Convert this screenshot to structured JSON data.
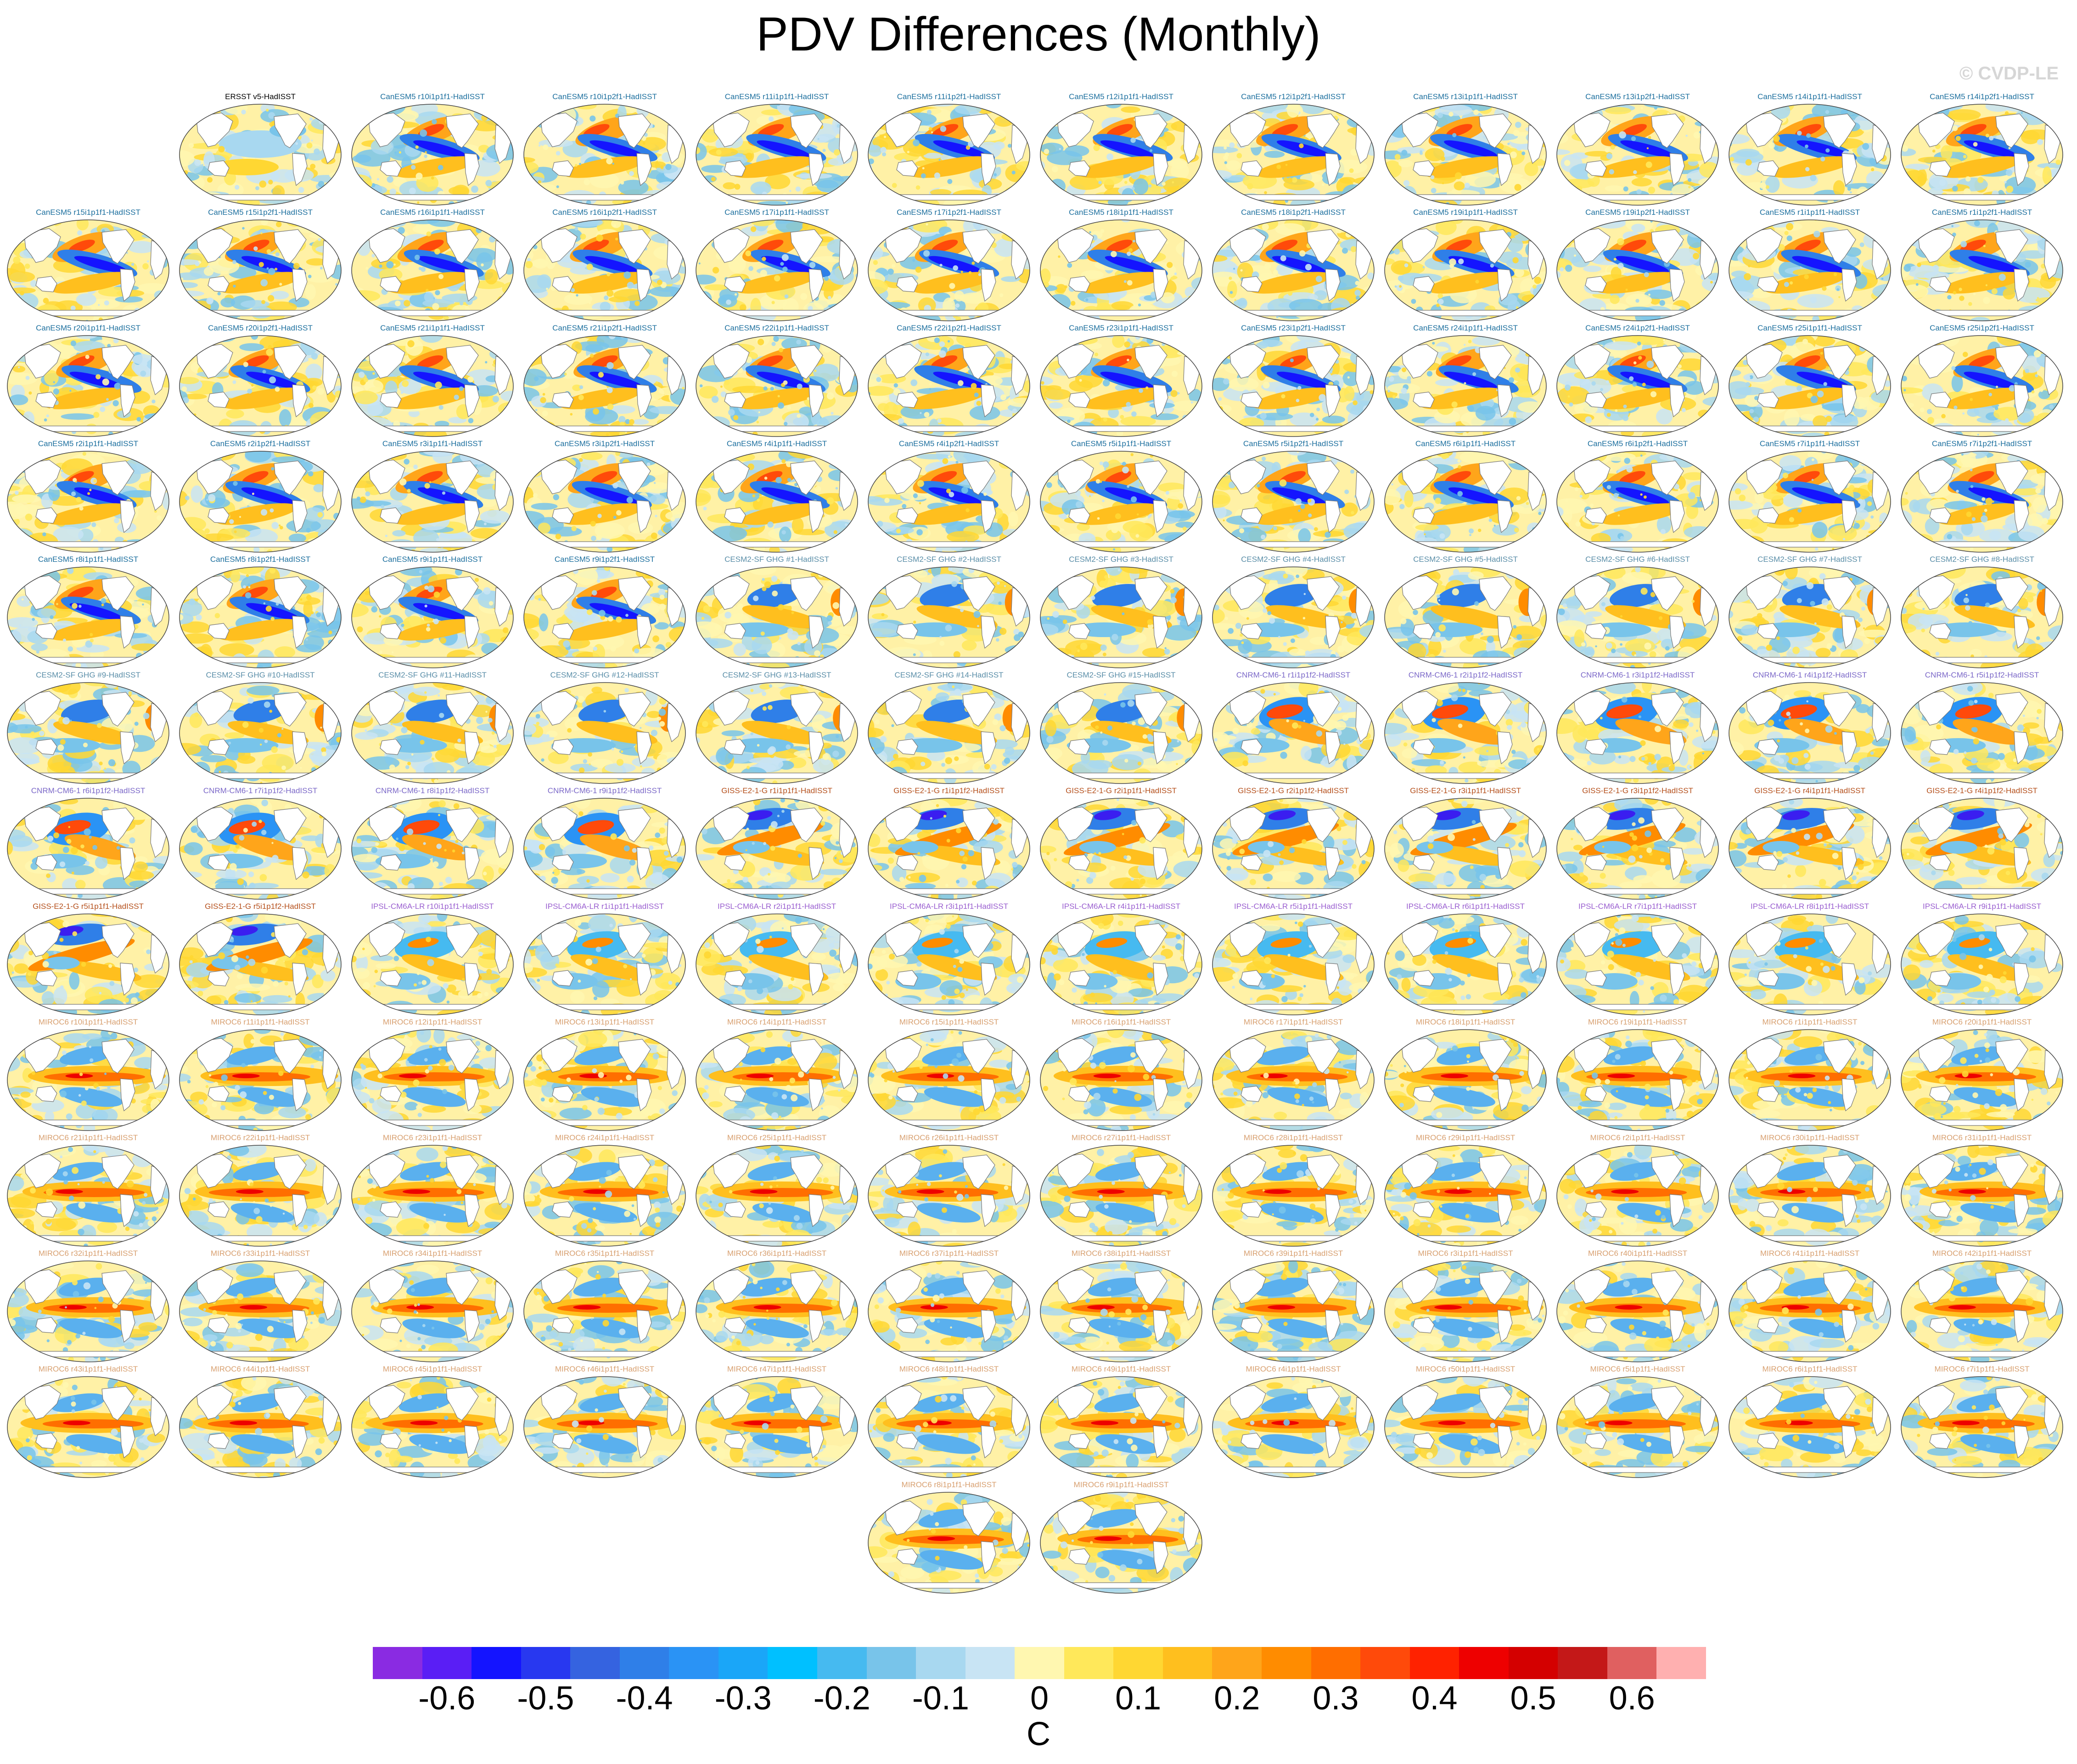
{
  "title": "PDV Differences (Monthly)",
  "watermark": "© CVDP-LE",
  "units": "C",
  "colorbar": {
    "colors": [
      "#8a2be2",
      "#5a1ef5",
      "#1414ff",
      "#2838f0",
      "#3563e0",
      "#2f7fe8",
      "#2a93f5",
      "#1aa6f8",
      "#00c0ff",
      "#46baf0",
      "#78c4ea",
      "#a8d8f0",
      "#c8e4f4",
      "#fff7b0",
      "#ffe85a",
      "#ffd732",
      "#ffbf1e",
      "#ffa51a",
      "#ff8c00",
      "#ff6e00",
      "#ff4a0a",
      "#ff2200",
      "#ee0000",
      "#d40000",
      "#c41818",
      "#e06060",
      "#ffb0b0"
    ],
    "tick_labels": [
      "-0.6",
      "-0.5",
      "-0.4",
      "-0.3",
      "-0.2",
      "-0.1",
      "0",
      "0.1",
      "0.2",
      "0.3",
      "0.4",
      "0.5",
      "0.6"
    ]
  },
  "panels": [
    {
      "label": "ERSST v5-HadISST",
      "color": "#000000",
      "pattern": "obs"
    },
    {
      "label": "CanESM5 r10i1p1f1-HadISST",
      "color": "#1c6f9e",
      "pattern": "can"
    },
    {
      "label": "CanESM5 r10i1p2f1-HadISST",
      "color": "#1c6f9e",
      "pattern": "can"
    },
    {
      "label": "CanESM5 r11i1p1f1-HadISST",
      "color": "#1c6f9e",
      "pattern": "can"
    },
    {
      "label": "CanESM5 r11i1p2f1-HadISST",
      "color": "#1c6f9e",
      "pattern": "can"
    },
    {
      "label": "CanESM5 r12i1p1f1-HadISST",
      "color": "#1c6f9e",
      "pattern": "can"
    },
    {
      "label": "CanESM5 r12i1p2f1-HadISST",
      "color": "#1c6f9e",
      "pattern": "can"
    },
    {
      "label": "CanESM5 r13i1p1f1-HadISST",
      "color": "#1c6f9e",
      "pattern": "can"
    },
    {
      "label": "CanESM5 r13i1p2f1-HadISST",
      "color": "#1c6f9e",
      "pattern": "can"
    },
    {
      "label": "CanESM5 r14i1p1f1-HadISST",
      "color": "#1c6f9e",
      "pattern": "can"
    },
    {
      "label": "CanESM5 r14i1p2f1-HadISST",
      "color": "#1c6f9e",
      "pattern": "can"
    },
    {
      "label": "CanESM5 r15i1p1f1-HadISST",
      "color": "#1c6f9e",
      "pattern": "can"
    },
    {
      "label": "CanESM5 r15i1p2f1-HadISST",
      "color": "#1c6f9e",
      "pattern": "can"
    },
    {
      "label": "CanESM5 r16i1p1f1-HadISST",
      "color": "#1c6f9e",
      "pattern": "can"
    },
    {
      "label": "CanESM5 r16i1p2f1-HadISST",
      "color": "#1c6f9e",
      "pattern": "can"
    },
    {
      "label": "CanESM5 r17i1p1f1-HadISST",
      "color": "#1c6f9e",
      "pattern": "can"
    },
    {
      "label": "CanESM5 r17i1p2f1-HadISST",
      "color": "#1c6f9e",
      "pattern": "can"
    },
    {
      "label": "CanESM5 r18i1p1f1-HadISST",
      "color": "#1c6f9e",
      "pattern": "can"
    },
    {
      "label": "CanESM5 r18i1p2f1-HadISST",
      "color": "#1c6f9e",
      "pattern": "can"
    },
    {
      "label": "CanESM5 r19i1p1f1-HadISST",
      "color": "#1c6f9e",
      "pattern": "can"
    },
    {
      "label": "CanESM5 r19i1p2f1-HadISST",
      "color": "#1c6f9e",
      "pattern": "can"
    },
    {
      "label": "CanESM5 r1i1p1f1-HadISST",
      "color": "#1c6f9e",
      "pattern": "can"
    },
    {
      "label": "CanESM5 r1i1p2f1-HadISST",
      "color": "#1c6f9e",
      "pattern": "can"
    },
    {
      "label": "CanESM5 r20i1p1f1-HadISST",
      "color": "#1c6f9e",
      "pattern": "can"
    },
    {
      "label": "CanESM5 r20i1p2f1-HadISST",
      "color": "#1c6f9e",
      "pattern": "can"
    },
    {
      "label": "CanESM5 r21i1p1f1-HadISST",
      "color": "#1c6f9e",
      "pattern": "can"
    },
    {
      "label": "CanESM5 r21i1p2f1-HadISST",
      "color": "#1c6f9e",
      "pattern": "can"
    },
    {
      "label": "CanESM5 r22i1p1f1-HadISST",
      "color": "#1c6f9e",
      "pattern": "can"
    },
    {
      "label": "CanESM5 r22i1p2f1-HadISST",
      "color": "#1c6f9e",
      "pattern": "can"
    },
    {
      "label": "CanESM5 r23i1p1f1-HadISST",
      "color": "#1c6f9e",
      "pattern": "can"
    },
    {
      "label": "CanESM5 r23i1p2f1-HadISST",
      "color": "#1c6f9e",
      "pattern": "can"
    },
    {
      "label": "CanESM5 r24i1p1f1-HadISST",
      "color": "#1c6f9e",
      "pattern": "can"
    },
    {
      "label": "CanESM5 r24i1p2f1-HadISST",
      "color": "#1c6f9e",
      "pattern": "can"
    },
    {
      "label": "CanESM5 r25i1p1f1-HadISST",
      "color": "#1c6f9e",
      "pattern": "can"
    },
    {
      "label": "CanESM5 r25i1p2f1-HadISST",
      "color": "#1c6f9e",
      "pattern": "can"
    },
    {
      "label": "CanESM5 r2i1p1f1-HadISST",
      "color": "#1c6f9e",
      "pattern": "can"
    },
    {
      "label": "CanESM5 r2i1p2f1-HadISST",
      "color": "#1c6f9e",
      "pattern": "can"
    },
    {
      "label": "CanESM5 r3i1p1f1-HadISST",
      "color": "#1c6f9e",
      "pattern": "can"
    },
    {
      "label": "CanESM5 r3i1p2f1-HadISST",
      "color": "#1c6f9e",
      "pattern": "can"
    },
    {
      "label": "CanESM5 r4i1p1f1-HadISST",
      "color": "#1c6f9e",
      "pattern": "can"
    },
    {
      "label": "CanESM5 r4i1p2f1-HadISST",
      "color": "#1c6f9e",
      "pattern": "can"
    },
    {
      "label": "CanESM5 r5i1p1f1-HadISST",
      "color": "#1c6f9e",
      "pattern": "can"
    },
    {
      "label": "CanESM5 r5i1p2f1-HadISST",
      "color": "#1c6f9e",
      "pattern": "can"
    },
    {
      "label": "CanESM5 r6i1p1f1-HadISST",
      "color": "#1c6f9e",
      "pattern": "can"
    },
    {
      "label": "CanESM5 r6i1p2f1-HadISST",
      "color": "#1c6f9e",
      "pattern": "can"
    },
    {
      "label": "CanESM5 r7i1p1f1-HadISST",
      "color": "#1c6f9e",
      "pattern": "can"
    },
    {
      "label": "CanESM5 r7i1p2f1-HadISST",
      "color": "#1c6f9e",
      "pattern": "can"
    },
    {
      "label": "CanESM5 r8i1p1f1-HadISST",
      "color": "#1c6f9e",
      "pattern": "can"
    },
    {
      "label": "CanESM5 r8i1p2f1-HadISST",
      "color": "#1c6f9e",
      "pattern": "can"
    },
    {
      "label": "CanESM5 r9i1p1f1-HadISST",
      "color": "#1c6f9e",
      "pattern": "can"
    },
    {
      "label": "CanESM5 r9i1p2f1-HadISST",
      "color": "#1c6f9e",
      "pattern": "can"
    },
    {
      "label": "CESM2-SF GHG #1-HadISST",
      "color": "#5a8ea8",
      "pattern": "cesm"
    },
    {
      "label": "CESM2-SF GHG #2-HadISST",
      "color": "#5a8ea8",
      "pattern": "cesm"
    },
    {
      "label": "CESM2-SF GHG #3-HadISST",
      "color": "#5a8ea8",
      "pattern": "cesm"
    },
    {
      "label": "CESM2-SF GHG #4-HadISST",
      "color": "#5a8ea8",
      "pattern": "cesm"
    },
    {
      "label": "CESM2-SF GHG #5-HadISST",
      "color": "#5a8ea8",
      "pattern": "cesm"
    },
    {
      "label": "CESM2-SF GHG #6-HadISST",
      "color": "#5a8ea8",
      "pattern": "cesm"
    },
    {
      "label": "CESM2-SF GHG #7-HadISST",
      "color": "#5a8ea8",
      "pattern": "cesm"
    },
    {
      "label": "CESM2-SF GHG #8-HadISST",
      "color": "#5a8ea8",
      "pattern": "cesm"
    },
    {
      "label": "CESM2-SF GHG #9-HadISST",
      "color": "#5a8ea8",
      "pattern": "cesm"
    },
    {
      "label": "CESM2-SF GHG #10-HadISST",
      "color": "#5a8ea8",
      "pattern": "cesm"
    },
    {
      "label": "CESM2-SF GHG #11-HadISST",
      "color": "#5a8ea8",
      "pattern": "cesm"
    },
    {
      "label": "CESM2-SF GHG #12-HadISST",
      "color": "#5a8ea8",
      "pattern": "cesm"
    },
    {
      "label": "CESM2-SF GHG #13-HadISST",
      "color": "#5a8ea8",
      "pattern": "cesm"
    },
    {
      "label": "CESM2-SF GHG #14-HadISST",
      "color": "#5a8ea8",
      "pattern": "cesm"
    },
    {
      "label": "CESM2-SF GHG #15-HadISST",
      "color": "#5a8ea8",
      "pattern": "cesm"
    },
    {
      "label": "CNRM-CM6-1 r1i1p1f2-HadISST",
      "color": "#7b68c8",
      "pattern": "cnrm"
    },
    {
      "label": "CNRM-CM6-1 r2i1p1f2-HadISST",
      "color": "#7b68c8",
      "pattern": "cnrm"
    },
    {
      "label": "CNRM-CM6-1 r3i1p1f2-HadISST",
      "color": "#7b68c8",
      "pattern": "cnrm"
    },
    {
      "label": "CNRM-CM6-1 r4i1p1f2-HadISST",
      "color": "#7b68c8",
      "pattern": "cnrm"
    },
    {
      "label": "CNRM-CM6-1 r5i1p1f2-HadISST",
      "color": "#7b68c8",
      "pattern": "cnrm"
    },
    {
      "label": "CNRM-CM6-1 r6i1p1f2-HadISST",
      "color": "#7b68c8",
      "pattern": "cnrm"
    },
    {
      "label": "CNRM-CM6-1 r7i1p1f2-HadISST",
      "color": "#7b68c8",
      "pattern": "cnrm"
    },
    {
      "label": "CNRM-CM6-1 r8i1p1f2-HadISST",
      "color": "#7b68c8",
      "pattern": "cnrm"
    },
    {
      "label": "CNRM-CM6-1 r9i1p1f2-HadISST",
      "color": "#7b68c8",
      "pattern": "cnrm"
    },
    {
      "label": "GISS-E2-1-G r1i1p1f1-HadISST",
      "color": "#b5501c",
      "pattern": "giss"
    },
    {
      "label": "GISS-E2-1-G r1i1p1f2-HadISST",
      "color": "#b5501c",
      "pattern": "giss"
    },
    {
      "label": "GISS-E2-1-G r2i1p1f1-HadISST",
      "color": "#b5501c",
      "pattern": "giss"
    },
    {
      "label": "GISS-E2-1-G r2i1p1f2-HadISST",
      "color": "#b5501c",
      "pattern": "giss"
    },
    {
      "label": "GISS-E2-1-G r3i1p1f1-HadISST",
      "color": "#b5501c",
      "pattern": "giss"
    },
    {
      "label": "GISS-E2-1-G r3i1p1f2-HadISST",
      "color": "#b5501c",
      "pattern": "giss"
    },
    {
      "label": "GISS-E2-1-G r4i1p1f1-HadISST",
      "color": "#b5501c",
      "pattern": "giss"
    },
    {
      "label": "GISS-E2-1-G r4i1p1f2-HadISST",
      "color": "#b5501c",
      "pattern": "giss"
    },
    {
      "label": "GISS-E2-1-G r5i1p1f1-HadISST",
      "color": "#b5501c",
      "pattern": "giss"
    },
    {
      "label": "GISS-E2-1-G r5i1p1f2-HadISST",
      "color": "#b5501c",
      "pattern": "giss"
    },
    {
      "label": "IPSL-CM6A-LR r10i1p1f1-HadISST",
      "color": "#9a5fd0",
      "pattern": "ipsl"
    },
    {
      "label": "IPSL-CM6A-LR r1i1p1f1-HadISST",
      "color": "#9a5fd0",
      "pattern": "ipsl"
    },
    {
      "label": "IPSL-CM6A-LR r2i1p1f1-HadISST",
      "color": "#9a5fd0",
      "pattern": "ipsl"
    },
    {
      "label": "IPSL-CM6A-LR r3i1p1f1-HadISST",
      "color": "#9a5fd0",
      "pattern": "ipsl"
    },
    {
      "label": "IPSL-CM6A-LR r4i1p1f1-HadISST",
      "color": "#9a5fd0",
      "pattern": "ipsl"
    },
    {
      "label": "IPSL-CM6A-LR r5i1p1f1-HadISST",
      "color": "#9a5fd0",
      "pattern": "ipsl"
    },
    {
      "label": "IPSL-CM6A-LR r6i1p1f1-HadISST",
      "color": "#9a5fd0",
      "pattern": "ipsl"
    },
    {
      "label": "IPSL-CM6A-LR r7i1p1f1-HadISST",
      "color": "#9a5fd0",
      "pattern": "ipsl"
    },
    {
      "label": "IPSL-CM6A-LR r8i1p1f1-HadISST",
      "color": "#9a5fd0",
      "pattern": "ipsl"
    },
    {
      "label": "IPSL-CM6A-LR r9i1p1f1-HadISST",
      "color": "#9a5fd0",
      "pattern": "ipsl"
    },
    {
      "label": "MIROC6 r10i1p1f1-HadISST",
      "color": "#d8a070",
      "pattern": "miroc"
    },
    {
      "label": "MIROC6 r11i1p1f1-HadISST",
      "color": "#d8a070",
      "pattern": "miroc"
    },
    {
      "label": "MIROC6 r12i1p1f1-HadISST",
      "color": "#d8a070",
      "pattern": "miroc"
    },
    {
      "label": "MIROC6 r13i1p1f1-HadISST",
      "color": "#d8a070",
      "pattern": "miroc"
    },
    {
      "label": "MIROC6 r14i1p1f1-HadISST",
      "color": "#d8a070",
      "pattern": "miroc"
    },
    {
      "label": "MIROC6 r15i1p1f1-HadISST",
      "color": "#d8a070",
      "pattern": "miroc"
    },
    {
      "label": "MIROC6 r16i1p1f1-HadISST",
      "color": "#d8a070",
      "pattern": "miroc"
    },
    {
      "label": "MIROC6 r17i1p1f1-HadISST",
      "color": "#d8a070",
      "pattern": "miroc"
    },
    {
      "label": "MIROC6 r18i1p1f1-HadISST",
      "color": "#d8a070",
      "pattern": "miroc"
    },
    {
      "label": "MIROC6 r19i1p1f1-HadISST",
      "color": "#d8a070",
      "pattern": "miroc"
    },
    {
      "label": "MIROC6 r1i1p1f1-HadISST",
      "color": "#d8a070",
      "pattern": "miroc"
    },
    {
      "label": "MIROC6 r20i1p1f1-HadISST",
      "color": "#d8a070",
      "pattern": "miroc"
    },
    {
      "label": "MIROC6 r21i1p1f1-HadISST",
      "color": "#d8a070",
      "pattern": "miroc"
    },
    {
      "label": "MIROC6 r22i1p1f1-HadISST",
      "color": "#d8a070",
      "pattern": "miroc"
    },
    {
      "label": "MIROC6 r23i1p1f1-HadISST",
      "color": "#d8a070",
      "pattern": "miroc"
    },
    {
      "label": "MIROC6 r24i1p1f1-HadISST",
      "color": "#d8a070",
      "pattern": "miroc"
    },
    {
      "label": "MIROC6 r25i1p1f1-HadISST",
      "color": "#d8a070",
      "pattern": "miroc"
    },
    {
      "label": "MIROC6 r26i1p1f1-HadISST",
      "color": "#d8a070",
      "pattern": "miroc"
    },
    {
      "label": "MIROC6 r27i1p1f1-HadISST",
      "color": "#d8a070",
      "pattern": "miroc"
    },
    {
      "label": "MIROC6 r28i1p1f1-HadISST",
      "color": "#d8a070",
      "pattern": "miroc"
    },
    {
      "label": "MIROC6 r29i1p1f1-HadISST",
      "color": "#d8a070",
      "pattern": "miroc"
    },
    {
      "label": "MIROC6 r2i1p1f1-HadISST",
      "color": "#d8a070",
      "pattern": "miroc"
    },
    {
      "label": "MIROC6 r30i1p1f1-HadISST",
      "color": "#d8a070",
      "pattern": "miroc"
    },
    {
      "label": "MIROC6 r31i1p1f1-HadISST",
      "color": "#d8a070",
      "pattern": "miroc"
    },
    {
      "label": "MIROC6 r32i1p1f1-HadISST",
      "color": "#d8a070",
      "pattern": "miroc"
    },
    {
      "label": "MIROC6 r33i1p1f1-HadISST",
      "color": "#d8a070",
      "pattern": "miroc"
    },
    {
      "label": "MIROC6 r34i1p1f1-HadISST",
      "color": "#d8a070",
      "pattern": "miroc"
    },
    {
      "label": "MIROC6 r35i1p1f1-HadISST",
      "color": "#d8a070",
      "pattern": "miroc"
    },
    {
      "label": "MIROC6 r36i1p1f1-HadISST",
      "color": "#d8a070",
      "pattern": "miroc"
    },
    {
      "label": "MIROC6 r37i1p1f1-HadISST",
      "color": "#d8a070",
      "pattern": "miroc"
    },
    {
      "label": "MIROC6 r38i1p1f1-HadISST",
      "color": "#d8a070",
      "pattern": "miroc"
    },
    {
      "label": "MIROC6 r39i1p1f1-HadISST",
      "color": "#d8a070",
      "pattern": "miroc"
    },
    {
      "label": "MIROC6 r3i1p1f1-HadISST",
      "color": "#d8a070",
      "pattern": "miroc"
    },
    {
      "label": "MIROC6 r40i1p1f1-HadISST",
      "color": "#d8a070",
      "pattern": "miroc"
    },
    {
      "label": "MIROC6 r41i1p1f1-HadISST",
      "color": "#d8a070",
      "pattern": "miroc"
    },
    {
      "label": "MIROC6 r42i1p1f1-HadISST",
      "color": "#d8a070",
      "pattern": "miroc"
    },
    {
      "label": "MIROC6 r43i1p1f1-HadISST",
      "color": "#d8a070",
      "pattern": "miroc"
    },
    {
      "label": "MIROC6 r44i1p1f1-HadISST",
      "color": "#d8a070",
      "pattern": "miroc"
    },
    {
      "label": "MIROC6 r45i1p1f1-HadISST",
      "color": "#d8a070",
      "pattern": "miroc"
    },
    {
      "label": "MIROC6 r46i1p1f1-HadISST",
      "color": "#d8a070",
      "pattern": "miroc"
    },
    {
      "label": "MIROC6 r47i1p1f1-HadISST",
      "color": "#d8a070",
      "pattern": "miroc"
    },
    {
      "label": "MIROC6 r48i1p1f1-HadISST",
      "color": "#d8a070",
      "pattern": "miroc"
    },
    {
      "label": "MIROC6 r49i1p1f1-HadISST",
      "color": "#d8a070",
      "pattern": "miroc"
    },
    {
      "label": "MIROC6 r4i1p1f1-HadISST",
      "color": "#d8a070",
      "pattern": "miroc"
    },
    {
      "label": "MIROC6 r50i1p1f1-HadISST",
      "color": "#d8a070",
      "pattern": "miroc"
    },
    {
      "label": "MIROC6 r5i1p1f1-HadISST",
      "color": "#d8a070",
      "pattern": "miroc"
    },
    {
      "label": "MIROC6 r6i1p1f1-HadISST",
      "color": "#d8a070",
      "pattern": "miroc"
    },
    {
      "label": "MIROC6 r7i1p1f1-HadISST",
      "color": "#d8a070",
      "pattern": "miroc"
    },
    {
      "label": "MIROC6 r8i1p1f1-HadISST",
      "color": "#d8a070",
      "pattern": "miroc"
    },
    {
      "label": "MIROC6 r9i1p1f1-HadISST",
      "color": "#d8a070",
      "pattern": "miroc"
    }
  ]
}
